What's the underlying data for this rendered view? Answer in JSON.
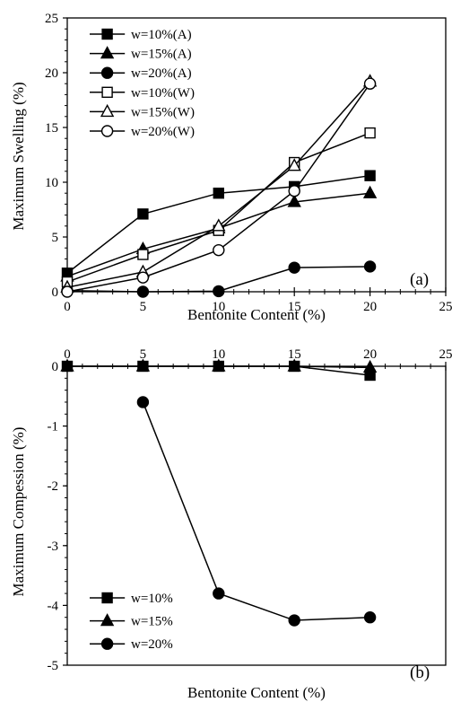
{
  "chart_data": [
    {
      "type": "line",
      "panel_label": "(a)",
      "xlabel": "Bentonite Content (%)",
      "ylabel": "Maximum Swelling (%)",
      "xlim": [
        0,
        25
      ],
      "ylim": [
        0,
        25
      ],
      "xticks": [
        "0",
        "5",
        "10",
        "15",
        "20",
        "25"
      ],
      "yticks": [
        "0",
        "5",
        "10",
        "15",
        "20",
        "25"
      ],
      "x_axis_position": "bottom",
      "grid": false,
      "legend_position": "top-left",
      "series": [
        {
          "name": "w=10%(A)",
          "marker": "square",
          "fill": "filled",
          "x": [
            0,
            5,
            10,
            15,
            20
          ],
          "values": [
            1.7,
            7.1,
            9.0,
            9.6,
            10.6
          ]
        },
        {
          "name": "w=15%(A)",
          "marker": "triangle",
          "fill": "filled",
          "x": [
            0,
            5,
            10,
            15,
            20
          ],
          "values": [
            1.4,
            3.9,
            5.8,
            8.2,
            9.0
          ]
        },
        {
          "name": "w=20%(A)",
          "marker": "circle",
          "fill": "filled",
          "x": [
            0,
            5,
            10,
            15,
            20
          ],
          "values": [
            0.1,
            0.0,
            0.05,
            2.2,
            2.3
          ]
        },
        {
          "name": "w=10%(W)",
          "marker": "square",
          "fill": "open",
          "x": [
            0,
            5,
            10,
            15,
            20
          ],
          "values": [
            0.9,
            3.4,
            5.6,
            11.8,
            14.5
          ]
        },
        {
          "name": "w=15%(W)",
          "marker": "triangle",
          "fill": "open",
          "x": [
            0,
            5,
            10,
            15,
            20
          ],
          "values": [
            0.4,
            1.8,
            6.0,
            11.5,
            19.2
          ]
        },
        {
          "name": "w=20%(W)",
          "marker": "circle",
          "fill": "open",
          "x": [
            0,
            5,
            10,
            15,
            20
          ],
          "values": [
            0.0,
            1.3,
            3.8,
            9.2,
            19.0
          ]
        }
      ]
    },
    {
      "type": "line",
      "panel_label": "(b)",
      "xlabel": "Bentonite Content (%)",
      "ylabel": "Maximum Compession (%)",
      "xlim": [
        0,
        25
      ],
      "ylim": [
        -5,
        0
      ],
      "xticks": [
        "0",
        "5",
        "10",
        "15",
        "20",
        "25"
      ],
      "yticks": [
        "0",
        "-1",
        "-2",
        "-3",
        "-4",
        "-5"
      ],
      "x_axis_position": "top",
      "grid": false,
      "legend_position": "bottom-left",
      "series": [
        {
          "name": "w=10%",
          "marker": "square",
          "fill": "filled",
          "x": [
            0,
            5,
            10,
            15,
            20
          ],
          "values": [
            0,
            0,
            0,
            0,
            -0.15
          ]
        },
        {
          "name": "w=15%",
          "marker": "triangle",
          "fill": "filled",
          "x": [
            0,
            5,
            10,
            15,
            20
          ],
          "values": [
            0,
            0,
            0,
            0,
            -0.02
          ]
        },
        {
          "name": "w=20%",
          "marker": "circle",
          "fill": "filled",
          "x": [
            5,
            10,
            15,
            20
          ],
          "values": [
            -0.6,
            -3.8,
            -4.25,
            -4.2
          ]
        }
      ]
    }
  ]
}
